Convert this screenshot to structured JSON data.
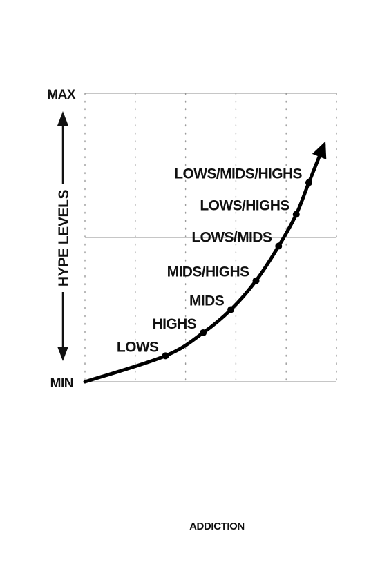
{
  "chart_data": {
    "type": "line",
    "xlabel": "ADDICTION",
    "ylabel": "HYPE LEVELS",
    "y_tick_labels": {
      "min": "MIN",
      "max": "MAX"
    },
    "xlim": [
      0,
      5
    ],
    "ylim": [
      0,
      1
    ],
    "grid": true,
    "midline": 0.5,
    "curve_end": {
      "x": 4.75,
      "y": 0.82
    },
    "points": [
      {
        "label": "LOWS",
        "x": 1.6,
        "y": 0.09
      },
      {
        "label": "HIGHS",
        "x": 2.35,
        "y": 0.17
      },
      {
        "label": "MIDS",
        "x": 2.9,
        "y": 0.25
      },
      {
        "label": "MIDS/HIGHS",
        "x": 3.4,
        "y": 0.35
      },
      {
        "label": "LOWS/MIDS",
        "x": 3.85,
        "y": 0.47
      },
      {
        "label": "LOWS/HIGHS",
        "x": 4.2,
        "y": 0.58
      },
      {
        "label": "LOWS/MIDS/HIGHS",
        "x": 4.45,
        "y": 0.69
      }
    ]
  },
  "colors": {
    "curve": "#000000",
    "grid": "#9a9a9a",
    "frame": "#8c8c8c",
    "text": "#111111"
  }
}
